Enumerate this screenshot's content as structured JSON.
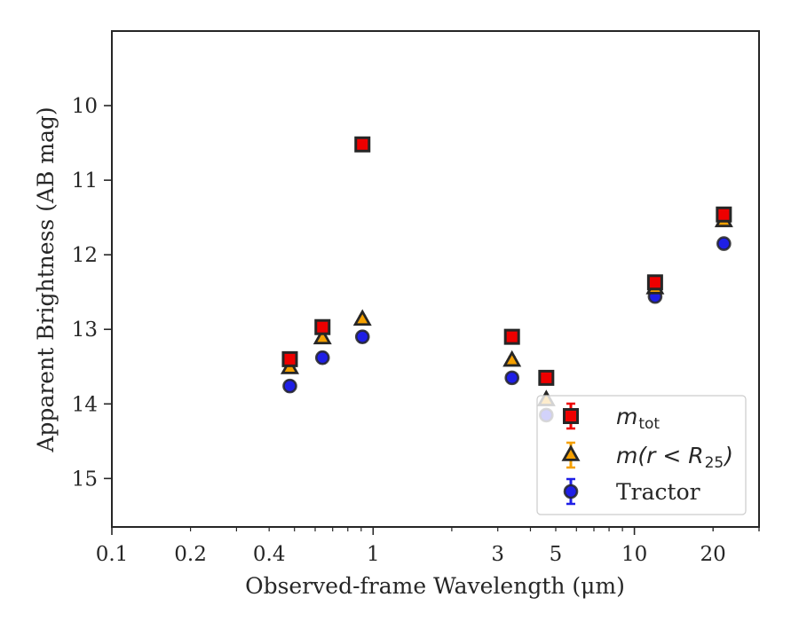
{
  "chart_data": {
    "type": "scatter",
    "xlabel": "Observed-frame Wavelength (μm)",
    "ylabel": "Apparent Brightness (AB mag)",
    "x_scale": "log",
    "xlim": [
      0.1,
      30
    ],
    "ylim": [
      15.65,
      9.0
    ],
    "y_inverted": true,
    "x_ticks": [
      0.1,
      0.2,
      0.4,
      1,
      3,
      5,
      10,
      20
    ],
    "x_tick_labels": [
      "0.1",
      "0.2",
      "0.4",
      "1",
      "3",
      "5",
      "10",
      "20"
    ],
    "y_ticks": [
      10,
      11,
      12,
      13,
      14,
      15
    ],
    "y_tick_labels": [
      "10",
      "11",
      "12",
      "13",
      "14",
      "15"
    ],
    "grid": false,
    "legend_position": "lower-right",
    "series": [
      {
        "name": "m_tot",
        "label_main": "m",
        "label_sub": "tot",
        "marker": "square",
        "color": "#ee0000",
        "points": [
          {
            "x": 0.48,
            "y": 13.4,
            "err": 0.05
          },
          {
            "x": 0.64,
            "y": 12.97,
            "err": 0.05
          },
          {
            "x": 0.91,
            "y": 10.52,
            "err": 0.04
          },
          {
            "x": 3.4,
            "y": 13.1,
            "err": 0.04
          },
          {
            "x": 4.6,
            "y": 13.65,
            "err": 0.04
          },
          {
            "x": 12.0,
            "y": 12.37,
            "err": 0.04
          },
          {
            "x": 22.0,
            "y": 11.46,
            "err": 0.05
          }
        ]
      },
      {
        "name": "m(r<R25)",
        "label_main": "m(r < R",
        "label_sub": "25",
        "label_tail": ")",
        "marker": "triangle",
        "color": "#f5a000",
        "points": [
          {
            "x": 0.48,
            "y": 13.52,
            "err": 0.05
          },
          {
            "x": 0.64,
            "y": 13.12,
            "err": 0.05
          },
          {
            "x": 0.91,
            "y": 12.87,
            "err": 0.05
          },
          {
            "x": 3.4,
            "y": 13.42,
            "err": 0.05
          },
          {
            "x": 4.6,
            "y": 13.95,
            "err": 0.05
          },
          {
            "x": 12.0,
            "y": 12.45,
            "err": 0.05
          },
          {
            "x": 22.0,
            "y": 11.55,
            "err": 0.05
          }
        ]
      },
      {
        "name": "Tractor",
        "marker": "circle",
        "color": "#1f1fe6",
        "points": [
          {
            "x": 0.48,
            "y": 13.76,
            "err": 0.07
          },
          {
            "x": 0.64,
            "y": 13.38,
            "err": 0.07
          },
          {
            "x": 0.91,
            "y": 13.1,
            "err": 0.07
          },
          {
            "x": 3.4,
            "y": 13.65,
            "err": 0.06
          },
          {
            "x": 4.6,
            "y": 14.15,
            "err": 0.06
          },
          {
            "x": 12.0,
            "y": 12.56,
            "err": 0.05
          },
          {
            "x": 22.0,
            "y": 11.85,
            "err": 0.06
          }
        ]
      }
    ]
  }
}
